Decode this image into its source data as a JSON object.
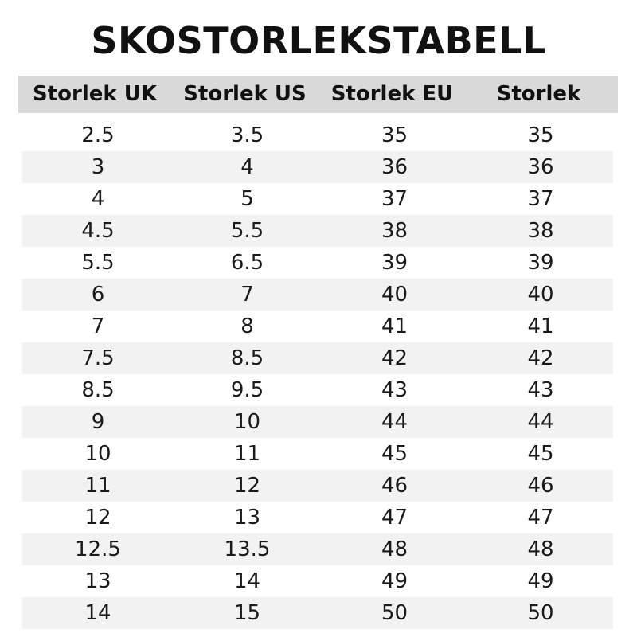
{
  "title": "SKOSTORLEKSTABELL",
  "colors": {
    "header_bg": "#d9d9d9",
    "stripe_bg": "#f2f2f2"
  },
  "columns": [
    "Storlek UK",
    "Storlek US",
    "Storlek EU",
    "Storlek"
  ],
  "rows": [
    [
      "2.5",
      "3.5",
      "35",
      "35"
    ],
    [
      "3",
      "4",
      "36",
      "36"
    ],
    [
      "4",
      "5",
      "37",
      "37"
    ],
    [
      "4.5",
      "5.5",
      "38",
      "38"
    ],
    [
      "5.5",
      "6.5",
      "39",
      "39"
    ],
    [
      "6",
      "7",
      "40",
      "40"
    ],
    [
      "7",
      "8",
      "41",
      "41"
    ],
    [
      "7.5",
      "8.5",
      "42",
      "42"
    ],
    [
      "8.5",
      "9.5",
      "43",
      "43"
    ],
    [
      "9",
      "10",
      "44",
      "44"
    ],
    [
      "10",
      "11",
      "45",
      "45"
    ],
    [
      "11",
      "12",
      "46",
      "46"
    ],
    [
      "12",
      "13",
      "47",
      "47"
    ],
    [
      "12.5",
      "13.5",
      "48",
      "48"
    ],
    [
      "13",
      "14",
      "49",
      "49"
    ],
    [
      "14",
      "15",
      "50",
      "50"
    ]
  ]
}
